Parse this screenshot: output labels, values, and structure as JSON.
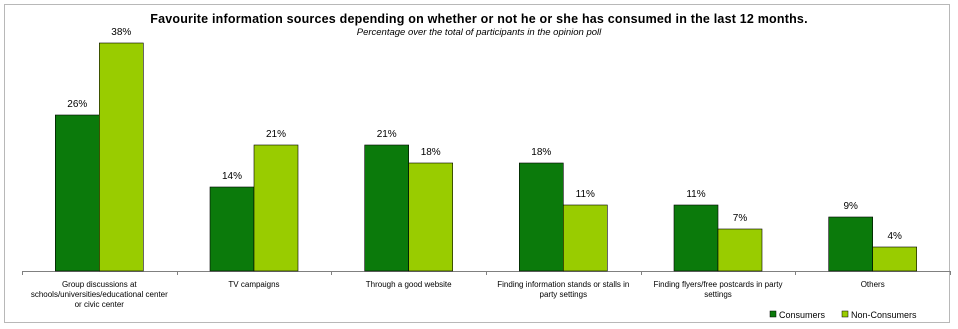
{
  "chart_data": {
    "type": "bar",
    "title": "Favourite information sources depending on whether or not he or she has consumed in the last 12 months.",
    "subtitle": "Percentage over the total of participants in the opinion poll",
    "categories": [
      [
        "Group discussions at",
        "schools/universities/educational center",
        "or civic center"
      ],
      [
        "TV campaigns"
      ],
      [
        "Through a good website"
      ],
      [
        "Finding information stands or stalls in",
        "party settings"
      ],
      [
        "Finding flyers/free postcards in party",
        "settings"
      ],
      [
        "Others"
      ]
    ],
    "series": [
      {
        "name": "Consumers",
        "values": [
          26,
          14,
          21,
          18,
          11,
          9
        ],
        "labels": [
          "26%",
          "14%",
          "21%",
          "18%",
          "11%",
          "9%"
        ]
      },
      {
        "name": "Non-Consumers",
        "values": [
          38,
          21,
          18,
          11,
          7,
          4
        ],
        "labels": [
          "38%",
          "21%",
          "18%",
          "11%",
          "7%",
          "4%"
        ]
      }
    ],
    "ylim": [
      0,
      40
    ],
    "grid": false,
    "legend_position": "bottom-right"
  },
  "colors": {
    "consumers": "#0b7a0b",
    "non_consumers": "#99cc00",
    "bar_outline": "#000000",
    "axis": "#808080"
  }
}
